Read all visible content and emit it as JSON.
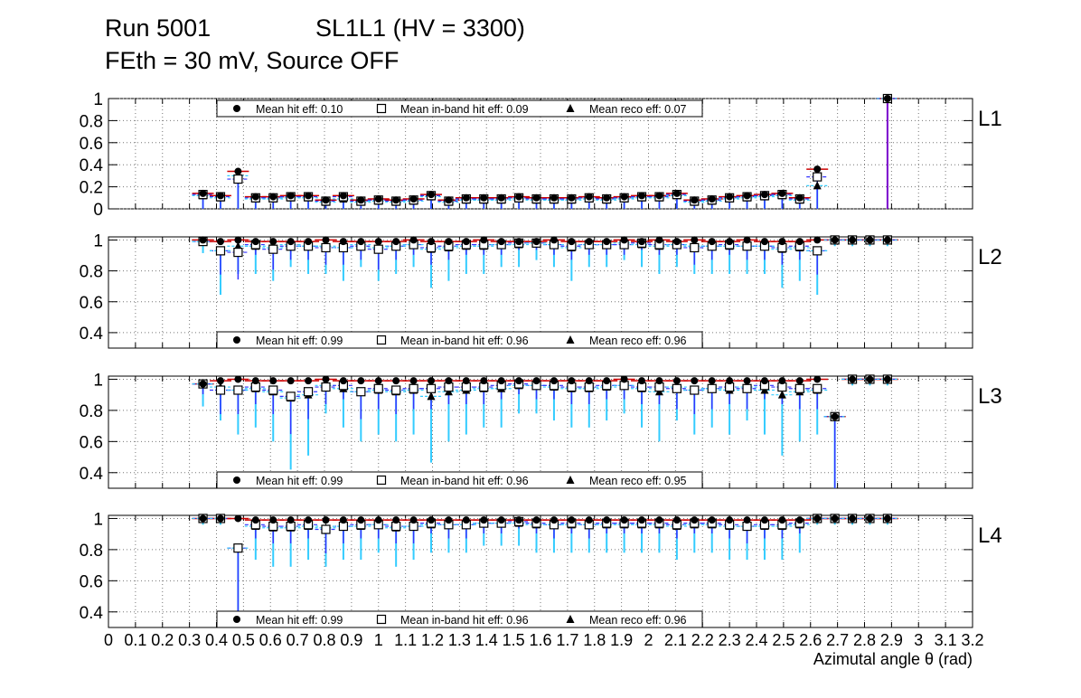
{
  "header": {
    "run": "Run 5001",
    "sl": "SL1L1 (HV = 3300)",
    "feth": "FEth = 30 mV, Source OFF"
  },
  "colors": {
    "hit": "#cc0000",
    "inband": "#3333ff",
    "reco": "#33ccff",
    "purple": "#7a00cc",
    "marker": "#000000",
    "grid": "#777777"
  },
  "chart_data": {
    "type": "scatter",
    "xlabel": "Azimutal angle θ (rad)",
    "xlim": [
      0,
      3.2
    ],
    "xticks": [
      0,
      0.1,
      0.2,
      0.3,
      0.4,
      0.5,
      0.6,
      0.7,
      0.8,
      0.9,
      1,
      1.1,
      1.2,
      1.3,
      1.4,
      1.5,
      1.6,
      1.7,
      1.8,
      1.9,
      2,
      2.1,
      2.2,
      2.3,
      2.4,
      2.5,
      2.6,
      2.7,
      2.8,
      2.9,
      3,
      3.1,
      3.2
    ],
    "xtick_labels": [
      "0",
      "0.1",
      "0.2",
      "0.3",
      "0.4",
      "0.5",
      "0.6",
      "0.7",
      "0.8",
      "0.9",
      "1",
      "1.1",
      "1.2",
      "1.3",
      "1.4",
      "1.5",
      "1.6",
      "1.7",
      "1.8",
      "1.9",
      "2",
      "2.1",
      "2.2",
      "2.3",
      "2.4",
      "2.5",
      "2.6",
      "2.7",
      "2.8",
      "2.9",
      "3",
      "3.1",
      "3.2"
    ],
    "x": [
      0.35,
      0.415,
      0.48,
      0.545,
      0.61,
      0.675,
      0.74,
      0.805,
      0.87,
      0.935,
      1.0,
      1.065,
      1.13,
      1.195,
      1.26,
      1.325,
      1.39,
      1.455,
      1.52,
      1.585,
      1.65,
      1.715,
      1.78,
      1.845,
      1.91,
      1.975,
      2.04,
      2.105,
      2.17,
      2.235,
      2.3,
      2.365,
      2.43,
      2.495,
      2.56,
      2.625,
      2.69,
      2.755,
      2.82,
      2.885
    ],
    "series_names": [
      "Mean hit  eff",
      "Mean in-band hit eff",
      "Mean reco eff"
    ],
    "panels": [
      {
        "name": "L1",
        "ylim": [
          0,
          1
        ],
        "yticks": [
          0,
          0.2,
          0.4,
          0.6,
          0.8,
          1
        ],
        "ytick_labels": [
          "0",
          "0.2",
          "0.4",
          "0.6",
          "0.8",
          "1"
        ],
        "legend": {
          "hit": "Mean hit  eff: 0.10",
          "inband": "Mean in-band hit eff: 0.09",
          "reco": "Mean reco eff: 0.07"
        },
        "hit": [
          0.14,
          0.12,
          0.34,
          0.11,
          0.11,
          0.12,
          0.12,
          0.08,
          0.12,
          0.08,
          0.09,
          0.08,
          0.09,
          0.13,
          0.08,
          0.1,
          0.1,
          0.1,
          0.11,
          0.1,
          0.1,
          0.1,
          0.11,
          0.1,
          0.11,
          0.12,
          0.12,
          0.14,
          0.08,
          0.09,
          0.11,
          0.12,
          0.13,
          0.14,
          0.1,
          0.36,
          null,
          null,
          null,
          1.0
        ],
        "inband": [
          0.13,
          0.11,
          0.27,
          0.1,
          0.1,
          0.11,
          0.11,
          0.07,
          0.11,
          0.07,
          0.08,
          0.07,
          0.08,
          0.12,
          0.07,
          0.09,
          0.09,
          0.09,
          0.1,
          0.09,
          0.09,
          0.09,
          0.1,
          0.09,
          0.1,
          0.11,
          0.11,
          0.13,
          0.07,
          0.08,
          0.1,
          0.11,
          0.12,
          0.13,
          0.09,
          0.29,
          null,
          null,
          null,
          1.0
        ],
        "reco": [
          0.12,
          0.1,
          0.3,
          0.09,
          0.09,
          0.1,
          0.1,
          0.06,
          0.09,
          0.06,
          0.07,
          0.06,
          0.07,
          0.11,
          0.06,
          0.08,
          0.08,
          0.08,
          0.09,
          0.08,
          0.08,
          0.08,
          0.09,
          0.08,
          0.09,
          0.1,
          0.1,
          0.12,
          0.06,
          0.07,
          0.09,
          0.1,
          0.11,
          0.12,
          0.08,
          0.21,
          null,
          null,
          null,
          1.0
        ]
      },
      {
        "name": "L2",
        "ylim": [
          0.3,
          1.02
        ],
        "yticks": [
          0.4,
          0.6,
          0.8,
          1
        ],
        "ytick_labels": [
          "0.4",
          "0.6",
          "0.8",
          "1"
        ],
        "legend": {
          "hit": "Mean hit  eff: 0.99",
          "inband": "Mean in-band hit eff: 0.96",
          "reco": "Mean reco eff: 0.96"
        },
        "hit": [
          1.0,
          0.99,
          1.0,
          0.99,
          0.99,
          0.99,
          0.99,
          1.0,
          0.99,
          0.99,
          0.99,
          0.99,
          1.0,
          0.99,
          0.99,
          0.99,
          1.0,
          0.99,
          0.99,
          0.99,
          1.0,
          0.99,
          0.99,
          0.99,
          1.0,
          0.99,
          1.0,
          0.99,
          1.0,
          0.99,
          0.99,
          1.0,
          0.99,
          0.99,
          0.99,
          1.0,
          1.0,
          1.0,
          1.0,
          1.0
        ],
        "inband": [
          0.99,
          0.93,
          0.92,
          0.97,
          0.94,
          0.96,
          0.96,
          0.95,
          0.95,
          0.96,
          0.94,
          0.96,
          0.97,
          0.95,
          0.96,
          0.97,
          0.97,
          0.97,
          0.98,
          0.98,
          0.97,
          0.96,
          0.97,
          0.97,
          0.97,
          0.98,
          0.97,
          0.97,
          0.95,
          0.96,
          0.97,
          0.96,
          0.96,
          0.95,
          0.96,
          0.93,
          1.0,
          1.0,
          1.0,
          1.0
        ],
        "reco": [
          0.99,
          0.93,
          0.96,
          0.96,
          0.95,
          0.97,
          0.96,
          0.96,
          0.95,
          0.97,
          0.95,
          0.96,
          0.97,
          0.94,
          0.95,
          0.96,
          0.96,
          0.97,
          0.97,
          0.98,
          0.97,
          0.95,
          0.97,
          0.97,
          0.98,
          0.97,
          0.96,
          0.97,
          0.96,
          0.96,
          0.96,
          0.96,
          0.96,
          0.94,
          0.95,
          0.93,
          1.0,
          1.0,
          1.0,
          1.0
        ]
      },
      {
        "name": "L3",
        "ylim": [
          0.3,
          1.02
        ],
        "yticks": [
          0.4,
          0.6,
          0.8,
          1
        ],
        "ytick_labels": [
          "0.4",
          "0.6",
          "0.8",
          "1"
        ],
        "legend": {
          "hit": "Mean hit  eff: 0.99",
          "inband": "Mean in-band hit eff: 0.96",
          "reco": "Mean reco eff: 0.95"
        },
        "hit": [
          0.97,
          0.99,
          1.0,
          0.99,
          0.99,
          0.99,
          0.99,
          1.0,
          0.99,
          0.99,
          0.99,
          0.99,
          0.99,
          0.99,
          0.99,
          0.99,
          0.99,
          0.99,
          0.99,
          0.99,
          0.99,
          0.99,
          0.99,
          0.99,
          1.0,
          0.99,
          0.99,
          0.99,
          0.99,
          0.99,
          0.99,
          0.99,
          0.99,
          0.99,
          0.99,
          1.0,
          0.76,
          1.0,
          1.0,
          1.0
        ],
        "inband": [
          0.97,
          0.93,
          0.93,
          0.95,
          0.93,
          0.89,
          0.92,
          0.95,
          0.96,
          0.92,
          0.94,
          0.93,
          0.94,
          0.94,
          0.95,
          0.95,
          0.95,
          0.96,
          0.97,
          0.96,
          0.96,
          0.95,
          0.95,
          0.96,
          0.96,
          0.95,
          0.95,
          0.94,
          0.93,
          0.94,
          0.95,
          0.94,
          0.96,
          0.95,
          0.94,
          0.94,
          0.76,
          1.0,
          1.0,
          1.0
        ],
        "reco": [
          0.97,
          0.95,
          0.93,
          0.94,
          0.92,
          0.88,
          0.9,
          0.96,
          0.94,
          0.92,
          0.93,
          0.92,
          0.93,
          0.89,
          0.92,
          0.93,
          0.94,
          0.94,
          0.96,
          0.96,
          0.95,
          0.94,
          0.94,
          0.95,
          0.96,
          0.94,
          0.92,
          0.95,
          0.93,
          0.94,
          0.93,
          0.95,
          0.93,
          0.9,
          0.92,
          0.93,
          0.76,
          1.0,
          1.0,
          1.0
        ]
      },
      {
        "name": "L4",
        "ylim": [
          0.3,
          1.02
        ],
        "yticks": [
          0.4,
          0.6,
          0.8,
          1
        ],
        "ytick_labels": [
          "0.4",
          "0.6",
          "0.8",
          "1"
        ],
        "legend": {
          "hit": "Mean hit  eff: 0.99",
          "inband": "Mean in-band hit eff: 0.96",
          "reco": "Mean reco eff: 0.96"
        },
        "hit": [
          1.0,
          1.0,
          1.0,
          0.99,
          0.99,
          0.99,
          0.99,
          0.99,
          0.99,
          0.99,
          0.99,
          0.99,
          0.99,
          0.99,
          0.99,
          0.99,
          0.99,
          0.99,
          0.99,
          0.99,
          0.99,
          0.99,
          0.99,
          0.99,
          0.99,
          0.99,
          0.99,
          0.99,
          0.99,
          0.99,
          0.99,
          0.99,
          0.99,
          0.99,
          0.99,
          1.0,
          1.0,
          1.0,
          1.0,
          1.0
        ],
        "inband": [
          1.0,
          1.0,
          0.81,
          0.96,
          0.95,
          0.95,
          0.96,
          0.93,
          0.95,
          0.96,
          0.96,
          0.95,
          0.95,
          0.97,
          0.96,
          0.96,
          0.97,
          0.97,
          0.98,
          0.97,
          0.96,
          0.97,
          0.96,
          0.97,
          0.97,
          0.97,
          0.97,
          0.96,
          0.97,
          0.97,
          0.96,
          0.95,
          0.96,
          0.96,
          0.97,
          1.0,
          1.0,
          1.0,
          1.0,
          1.0
        ],
        "reco": [
          1.0,
          1.0,
          0.81,
          0.95,
          0.94,
          0.94,
          0.95,
          0.94,
          0.95,
          0.95,
          0.96,
          0.94,
          0.95,
          0.96,
          0.96,
          0.96,
          0.97,
          0.97,
          0.97,
          0.96,
          0.96,
          0.96,
          0.96,
          0.96,
          0.96,
          0.96,
          0.96,
          0.95,
          0.96,
          0.96,
          0.95,
          0.95,
          0.95,
          0.95,
          0.96,
          1.0,
          1.0,
          1.0,
          1.0,
          1.0
        ]
      }
    ]
  }
}
